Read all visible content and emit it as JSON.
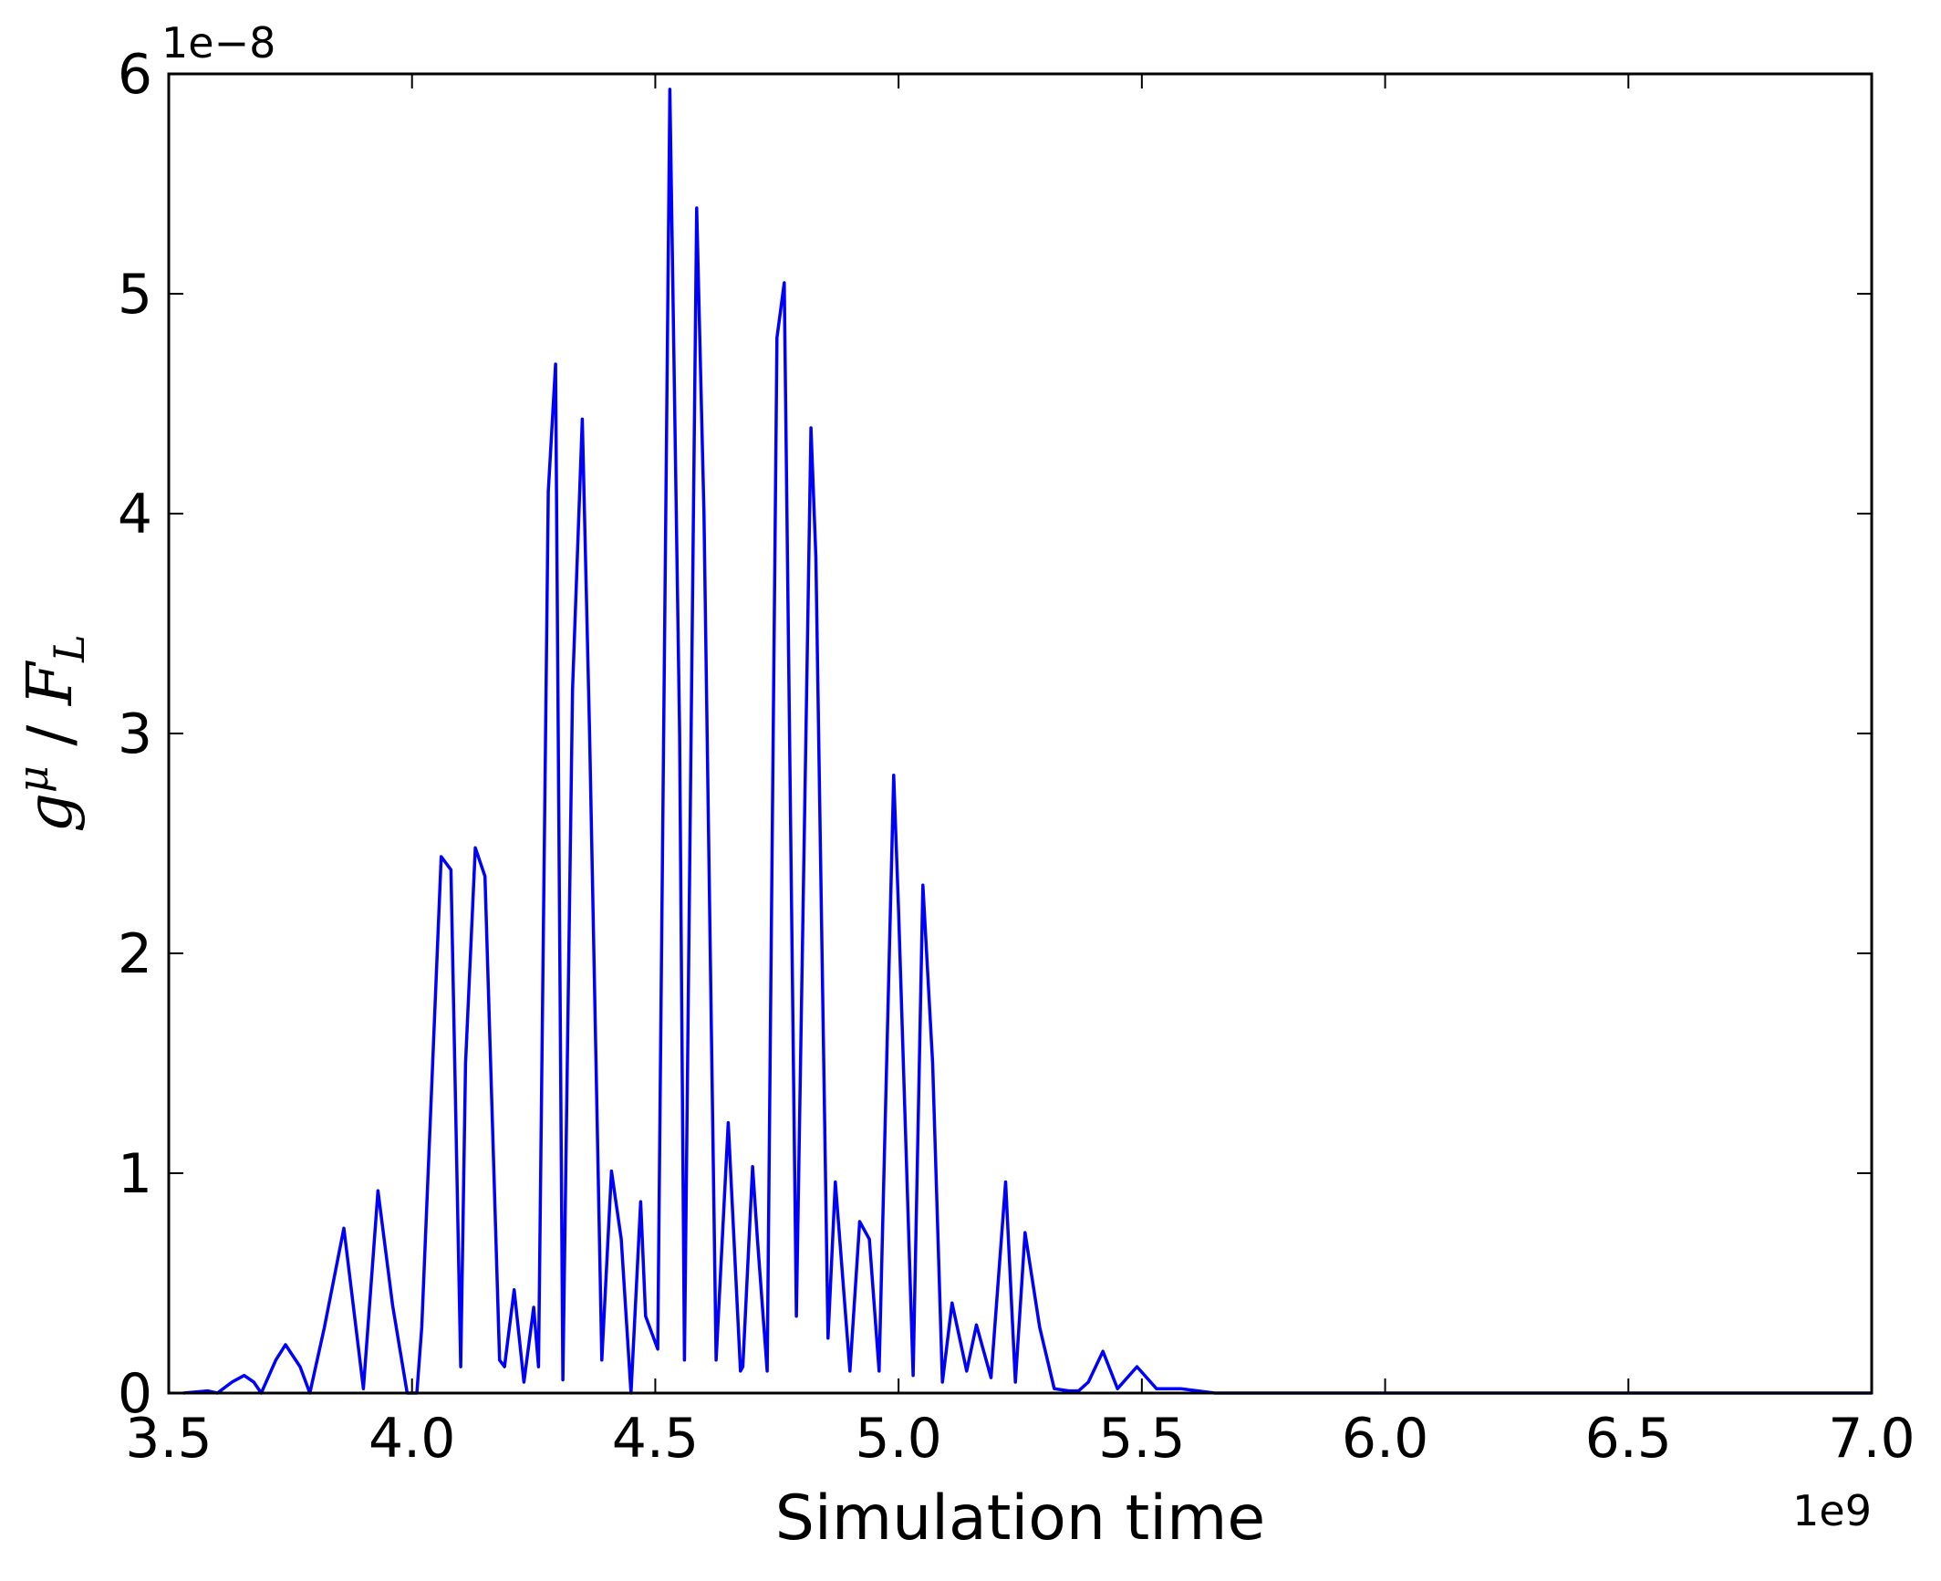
{
  "chart_data": {
    "type": "line",
    "title": "",
    "xlabel": "Simulation time",
    "ylabel": {
      "main": "g",
      "sup": "μ",
      "separator": " / ",
      "denom": "F",
      "denom_sub": "L"
    },
    "x_offset_label": "1e9",
    "y_offset_label": "1e−8",
    "xlim": [
      3.5,
      7.0
    ],
    "ylim": [
      0,
      6
    ],
    "x_ticks": [
      3.5,
      4.0,
      4.5,
      5.0,
      5.5,
      6.0,
      6.5,
      7.0
    ],
    "x_tick_labels": [
      "3.5",
      "4.0",
      "4.5",
      "5.0",
      "5.5",
      "6.0",
      "6.5",
      "7.0"
    ],
    "y_ticks": [
      0,
      1,
      2,
      3,
      4,
      5,
      6
    ],
    "y_tick_labels": [
      "0",
      "1",
      "2",
      "3",
      "4",
      "5",
      "6"
    ],
    "grid": false,
    "legend": "none",
    "line_color": "#0000ff",
    "series": [
      {
        "x": [
          3.53,
          3.58,
          3.6,
          3.63,
          3.655,
          3.675,
          3.69,
          3.72,
          3.74,
          3.77,
          3.79,
          3.82,
          3.86,
          3.9,
          3.93,
          3.96,
          3.99,
          4.01,
          4.02,
          4.06,
          4.08,
          4.1,
          4.11,
          4.13,
          4.15,
          4.18,
          4.19,
          4.21,
          4.23,
          4.25,
          4.26,
          4.28,
          4.295,
          4.31,
          4.33,
          4.35,
          4.365,
          4.39,
          4.41,
          4.43,
          4.45,
          4.47,
          4.48,
          4.505,
          4.53,
          4.55,
          4.56,
          4.585,
          4.6,
          4.625,
          4.65,
          4.675,
          4.68,
          4.7,
          4.71,
          4.73,
          4.75,
          4.765,
          4.79,
          4.82,
          4.83,
          4.855,
          4.87,
          4.9,
          4.92,
          4.94,
          4.96,
          4.99,
          5.0,
          5.03,
          5.05,
          5.07,
          5.09,
          5.11,
          5.14,
          5.16,
          5.19,
          5.22,
          5.24,
          5.26,
          5.29,
          5.32,
          5.35,
          5.37,
          5.39,
          5.42,
          5.45,
          5.49,
          5.53,
          5.58,
          5.65,
          7.0
        ],
        "y": [
          0.0,
          0.01,
          0.0,
          0.05,
          0.08,
          0.05,
          0.0,
          0.15,
          0.22,
          0.12,
          0.0,
          0.3,
          0.75,
          0.02,
          0.92,
          0.4,
          0.0,
          0.0,
          0.3,
          2.44,
          2.38,
          0.12,
          1.5,
          2.48,
          2.35,
          0.15,
          0.12,
          0.47,
          0.05,
          0.39,
          0.12,
          4.1,
          4.68,
          0.06,
          3.2,
          4.43,
          3.0,
          0.15,
          1.01,
          0.7,
          0.0,
          0.87,
          0.35,
          0.2,
          5.93,
          3.0,
          0.15,
          5.39,
          4.0,
          0.15,
          1.23,
          0.1,
          0.12,
          1.03,
          0.7,
          0.1,
          4.8,
          5.05,
          0.35,
          4.39,
          3.8,
          0.25,
          0.96,
          0.1,
          0.78,
          0.7,
          0.1,
          2.81,
          2.2,
          0.08,
          2.31,
          1.5,
          0.05,
          0.41,
          0.1,
          0.31,
          0.07,
          0.96,
          0.05,
          0.73,
          0.3,
          0.02,
          0.01,
          0.01,
          0.05,
          0.19,
          0.02,
          0.12,
          0.02,
          0.02,
          0.0,
          0.0
        ]
      }
    ]
  }
}
